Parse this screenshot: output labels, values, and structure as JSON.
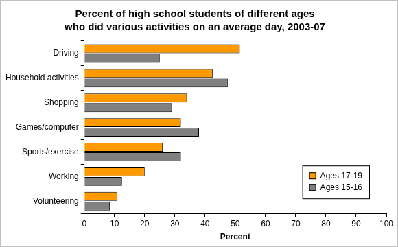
{
  "chart_data": {
    "type": "bar",
    "title": "Percent of high school students of different ages who did various activities on an average day, 2003-07",
    "orientation": "horizontal",
    "categories": [
      "Driving",
      "Household activities",
      "Shopping",
      "Games/computer",
      "Sports/exercise",
      "Working",
      "Volunteering"
    ],
    "series": [
      {
        "name": "Ages 17-19",
        "color": "#ff9900",
        "values": [
          51.5,
          42.5,
          34,
          32,
          26,
          20,
          11
        ]
      },
      {
        "name": "Ages 15-16",
        "color": "#808080",
        "values": [
          25,
          47.5,
          29,
          38,
          32,
          12.5,
          8.5
        ]
      }
    ],
    "xlabel": "Percent",
    "xlim": [
      0,
      100
    ],
    "xticks": [
      0,
      10,
      20,
      30,
      40,
      50,
      60,
      70,
      80,
      90,
      100
    ],
    "grid": false,
    "legend": "lower right"
  }
}
